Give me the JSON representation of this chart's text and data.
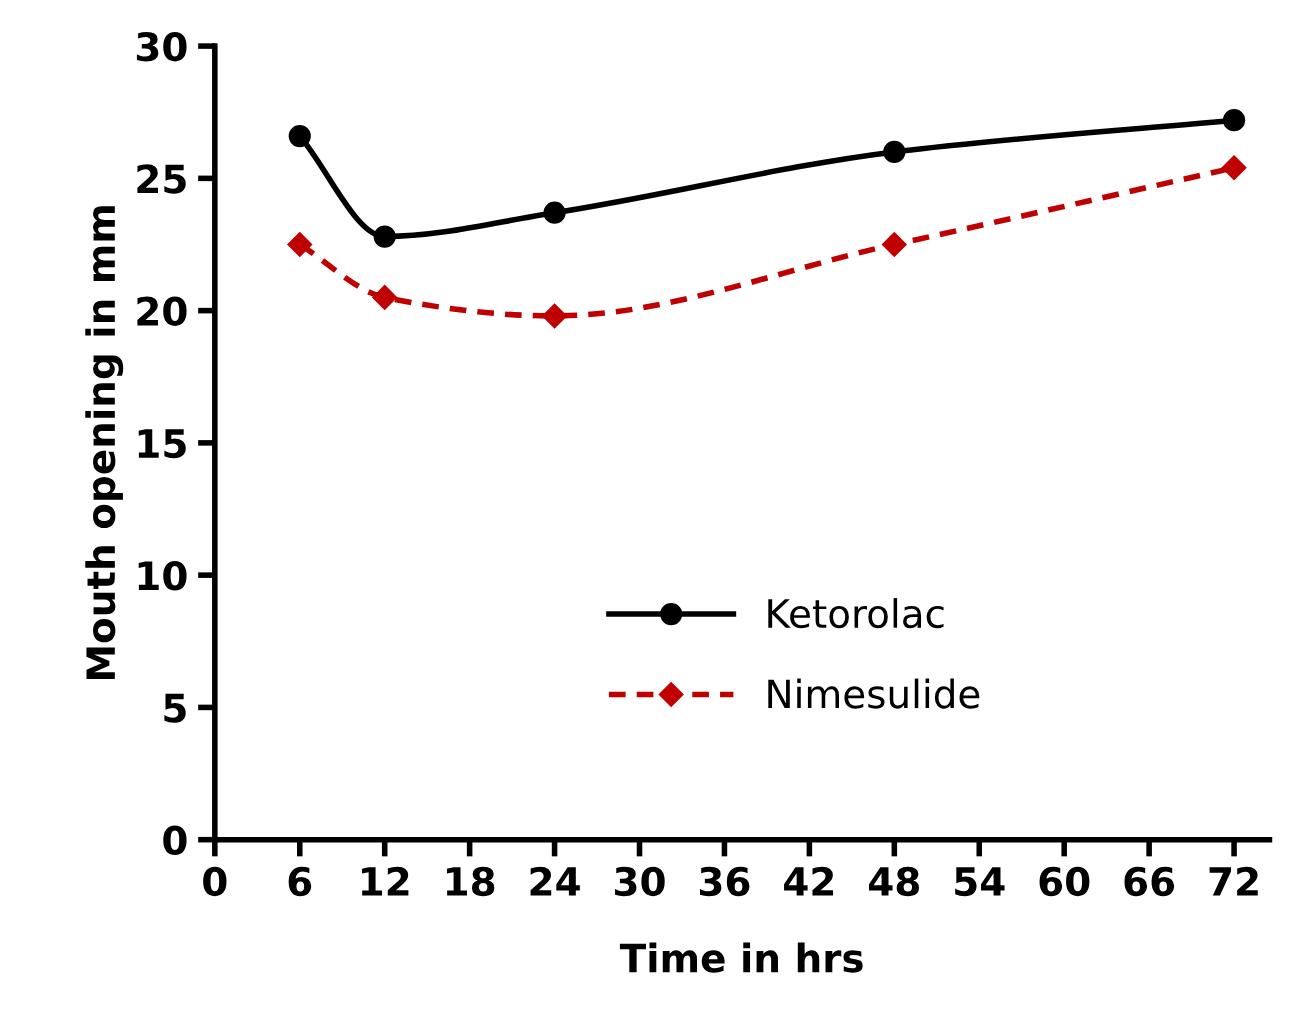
{
  "chart_data": {
    "type": "line",
    "xlabel": "Time in hrs",
    "ylabel": "Mouth opening in mm",
    "x": [
      6,
      12,
      24,
      48,
      72
    ],
    "series": [
      {
        "name": "Ketorolac",
        "color": "#000000",
        "values": [
          26.6,
          22.8,
          23.7,
          26.0,
          27.2
        ],
        "marker": "circle",
        "line_style": "solid"
      },
      {
        "name": "Nimesulide",
        "color": "#c00000",
        "values": [
          22.5,
          20.5,
          19.8,
          22.5,
          25.4
        ],
        "marker": "diamond",
        "line_style": "dashed"
      }
    ],
    "xlim": [
      0,
      74.5
    ],
    "xticks": [
      0,
      6,
      12,
      18,
      24,
      30,
      36,
      42,
      48,
      54,
      60,
      66,
      72
    ],
    "ylim": [
      0,
      30
    ],
    "yticks": [
      0,
      5,
      10,
      15,
      20,
      25,
      30
    ],
    "grid": false,
    "legend": "center right"
  }
}
